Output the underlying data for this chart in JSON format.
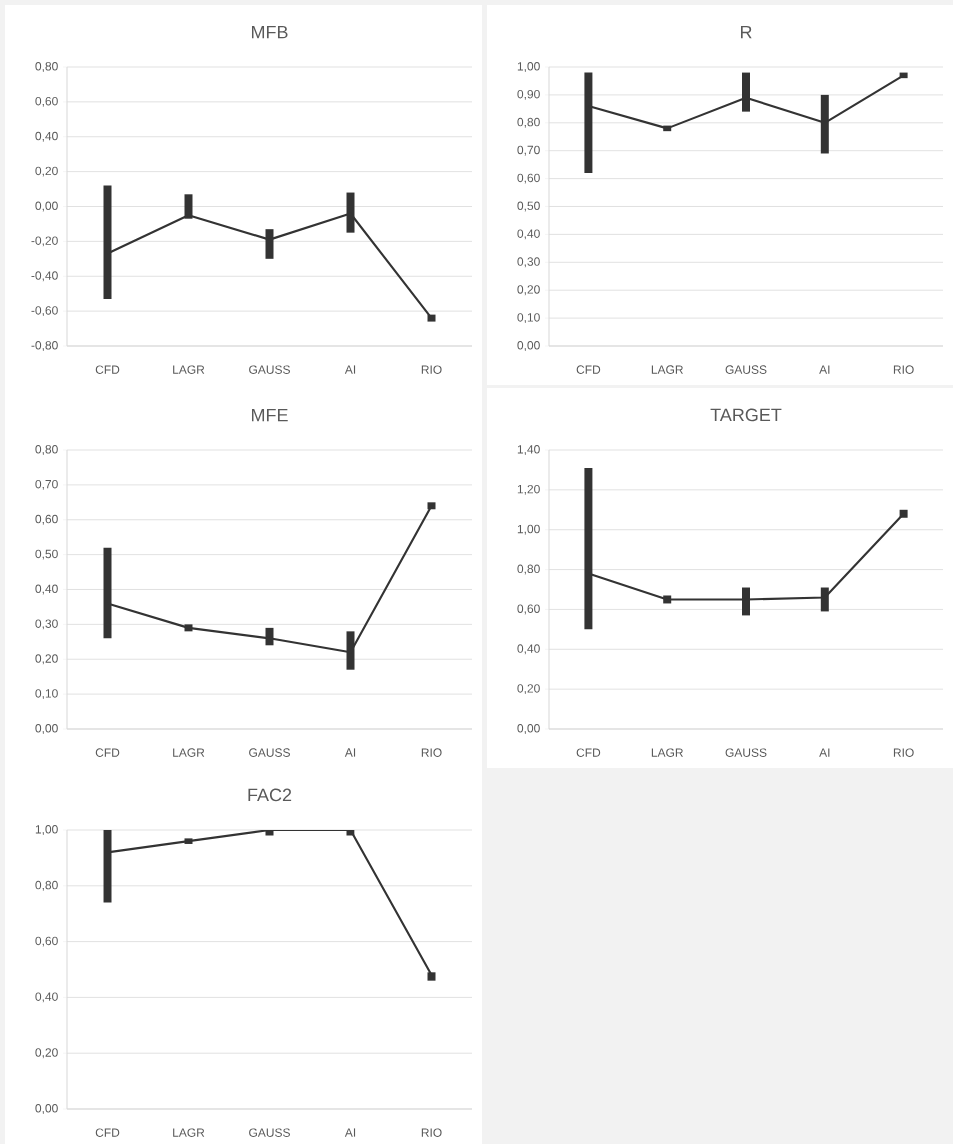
{
  "chart_data": [
    {
      "type": "line",
      "title": "MFB",
      "categories": [
        "CFD",
        "LAGR",
        "GAUSS",
        "AI",
        "RIO"
      ],
      "grid": "y",
      "line_style": "solid",
      "ylim": [
        -0.8,
        0.8
      ],
      "yticks": [
        {
          "value": -0.8,
          "label": "-0,80"
        },
        {
          "value": -0.6,
          "label": "-0,60"
        },
        {
          "value": -0.4,
          "label": "-0,40"
        },
        {
          "value": -0.2,
          "label": "-0,20"
        },
        {
          "value": 0,
          "label": "0,00"
        },
        {
          "value": 0.2,
          "label": "0,20"
        },
        {
          "value": 0.4,
          "label": "0,40"
        },
        {
          "value": 0.6,
          "label": "0,60"
        },
        {
          "value": 0.8,
          "label": "0,80"
        }
      ],
      "series": [
        {
          "color": "#333333",
          "values": [
            -0.27,
            -0.05,
            -0.19,
            -0.04,
            -0.64
          ],
          "errors": [
            [
              -0.53,
              0.12
            ],
            [
              -0.07,
              0.07
            ],
            [
              -0.3,
              -0.13
            ],
            [
              -0.15,
              0.08
            ],
            [
              -0.66,
              -0.62
            ]
          ]
        }
      ]
    },
    {
      "type": "line",
      "title": "R",
      "categories": [
        "CFD",
        "LAGR",
        "GAUSS",
        "AI",
        "RIO"
      ],
      "grid": "y",
      "line_style": "solid",
      "ylim": [
        0,
        1
      ],
      "yticks": [
        {
          "value": 0,
          "label": "0,00"
        },
        {
          "value": 0.1,
          "label": "0,10"
        },
        {
          "value": 0.2,
          "label": "0,20"
        },
        {
          "value": 0.3,
          "label": "0,30"
        },
        {
          "value": 0.4,
          "label": "0,40"
        },
        {
          "value": 0.5,
          "label": "0,50"
        },
        {
          "value": 0.6,
          "label": "0,60"
        },
        {
          "value": 0.7,
          "label": "0,70"
        },
        {
          "value": 0.8,
          "label": "0,80"
        },
        {
          "value": 0.9,
          "label": "0,90"
        },
        {
          "value": 1,
          "label": "1,00"
        }
      ],
      "series": [
        {
          "color": "#333333",
          "values": [
            0.86,
            0.78,
            0.89,
            0.8,
            0.97
          ],
          "errors": [
            [
              0.62,
              0.98
            ],
            [
              0.77,
              0.79
            ],
            [
              0.84,
              0.98
            ],
            [
              0.69,
              0.9
            ],
            [
              0.96,
              0.98
            ]
          ]
        }
      ]
    },
    {
      "type": "line",
      "title": "MFE",
      "categories": [
        "CFD",
        "LAGR",
        "GAUSS",
        "AI",
        "RIO"
      ],
      "grid": "y",
      "line_style": "solid",
      "ylim": [
        0,
        0.8
      ],
      "yticks": [
        {
          "value": 0,
          "label": "0,00"
        },
        {
          "value": 0.1,
          "label": "0,10"
        },
        {
          "value": 0.2,
          "label": "0,20"
        },
        {
          "value": 0.3,
          "label": "0,30"
        },
        {
          "value": 0.4,
          "label": "0,40"
        },
        {
          "value": 0.5,
          "label": "0,50"
        },
        {
          "value": 0.6,
          "label": "0,60"
        },
        {
          "value": 0.7,
          "label": "0,70"
        },
        {
          "value": 0.8,
          "label": "0,80"
        }
      ],
      "series": [
        {
          "color": "#333333",
          "values": [
            0.36,
            0.29,
            0.26,
            0.22,
            0.64
          ],
          "errors": [
            [
              0.26,
              0.52
            ],
            [
              0.28,
              0.3
            ],
            [
              0.24,
              0.29
            ],
            [
              0.17,
              0.28
            ],
            [
              0.63,
              0.65
            ]
          ]
        }
      ]
    },
    {
      "type": "line",
      "title": "TARGET",
      "categories": [
        "CFD",
        "LAGR",
        "GAUSS",
        "AI",
        "RIO"
      ],
      "grid": "y",
      "line_style": "solid",
      "ylim": [
        0,
        1.4
      ],
      "yticks": [
        {
          "value": 0,
          "label": "0,00"
        },
        {
          "value": 0.2,
          "label": "0,20"
        },
        {
          "value": 0.4,
          "label": "0,40"
        },
        {
          "value": 0.6,
          "label": "0,60"
        },
        {
          "value": 0.8,
          "label": "0,80"
        },
        {
          "value": 1,
          "label": "1,00"
        },
        {
          "value": 1.2,
          "label": "1,20"
        },
        {
          "value": 1.4,
          "label": "1,40"
        }
      ],
      "series": [
        {
          "color": "#333333",
          "values": [
            0.78,
            0.65,
            0.65,
            0.66,
            1.08
          ],
          "errors": [
            [
              0.5,
              1.31
            ],
            [
              0.63,
              0.67
            ],
            [
              0.57,
              0.71
            ],
            [
              0.59,
              0.71
            ],
            [
              1.06,
              1.1
            ]
          ]
        }
      ]
    },
    {
      "type": "line",
      "title": "FAC2",
      "categories": [
        "CFD",
        "LAGR",
        "GAUSS",
        "AI",
        "RIO"
      ],
      "grid": "y",
      "line_style": "solid",
      "ylim": [
        0,
        1
      ],
      "yticks": [
        {
          "value": 0,
          "label": "0,00"
        },
        {
          "value": 0.2,
          "label": "0,20"
        },
        {
          "value": 0.4,
          "label": "0,40"
        },
        {
          "value": 0.6,
          "label": "0,60"
        },
        {
          "value": 0.8,
          "label": "0,80"
        },
        {
          "value": 1,
          "label": "1,00"
        }
      ],
      "series": [
        {
          "color": "#333333",
          "values": [
            0.92,
            0.96,
            1.0,
            1.0,
            0.48
          ],
          "errors": [
            [
              0.74,
              1.0
            ],
            [
              0.95,
              0.97
            ],
            [
              0.98,
              1.0
            ],
            [
              0.98,
              1.0
            ],
            [
              0.46,
              0.49
            ]
          ]
        }
      ]
    }
  ]
}
